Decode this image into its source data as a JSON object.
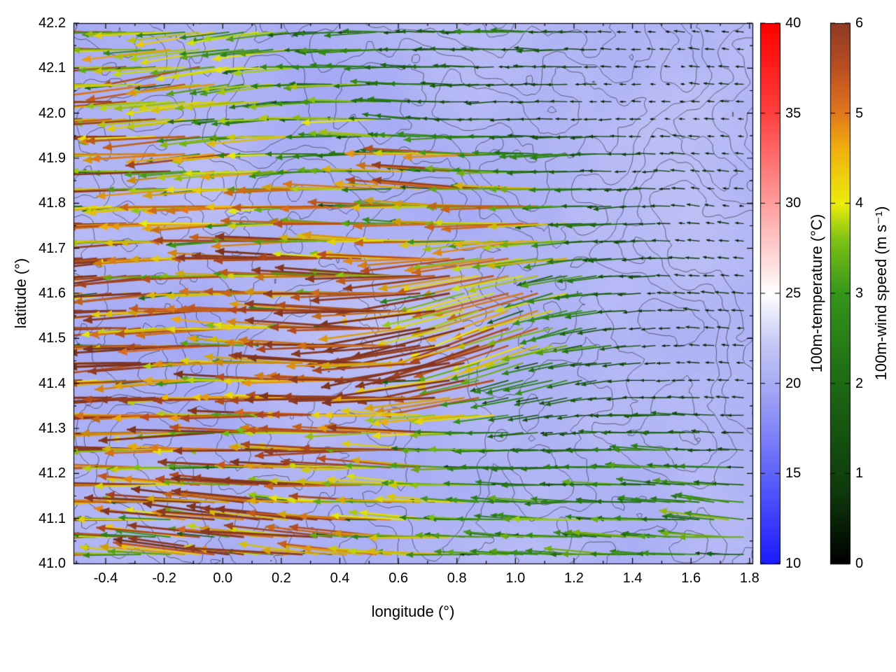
{
  "figure": {
    "background_color": "#ffffff",
    "frame_color": "#000000",
    "contour_line_color": "#2a2a33",
    "map_base_color": "#b2b6f2"
  },
  "chart_data": {
    "type": "heatmap",
    "subtype": "geographic vector-field map: 100 m wind vectors (colored/scaled by speed) over 100 m temperature shading with terrain contour lines",
    "title": "",
    "xlabel": "longitude (°)",
    "ylabel": "latitude (°)",
    "xlim": [
      -0.51,
      1.81
    ],
    "ylim": [
      41.0,
      42.2
    ],
    "x_ticks": [
      -0.4,
      -0.2,
      0.0,
      0.2,
      0.4,
      0.6,
      0.8,
      1.0,
      1.2,
      1.4,
      1.6,
      1.8
    ],
    "y_ticks": [
      41.0,
      41.1,
      41.2,
      41.3,
      41.4,
      41.5,
      41.6,
      41.7,
      41.8,
      41.9,
      42.0,
      42.1,
      42.2
    ],
    "grid": false,
    "legend_position": "right colorbars",
    "colorbars": [
      {
        "id": "temperature",
        "label": "100m-temperature (°C)",
        "min": 10,
        "max": 40,
        "ticks": [
          10,
          15,
          20,
          25,
          30,
          35,
          40
        ],
        "stops": [
          [
            10,
            "#1b1bff"
          ],
          [
            15,
            "#5f63fa"
          ],
          [
            20,
            "#a8acf4"
          ],
          [
            22,
            "#c2c5f6"
          ],
          [
            25,
            "#ffffff"
          ],
          [
            30,
            "#ff9e9e"
          ],
          [
            35,
            "#ff4040"
          ],
          [
            40,
            "#ff0000"
          ]
        ]
      },
      {
        "id": "wind_speed",
        "label": "100m-wind speed (m s⁻¹)",
        "min": 0,
        "max": 6,
        "ticks": [
          0,
          1,
          2,
          3,
          4,
          5,
          6
        ],
        "stops": [
          [
            0,
            "#000000"
          ],
          [
            0.8,
            "#0e3a0c"
          ],
          [
            2,
            "#1d6a14"
          ],
          [
            3,
            "#35961b"
          ],
          [
            3.6,
            "#7fc315"
          ],
          [
            4,
            "#eded0c"
          ],
          [
            4.6,
            "#f0b10c"
          ],
          [
            5,
            "#e2791c"
          ],
          [
            5.5,
            "#bc4f22"
          ],
          [
            6,
            "#8e3b24"
          ]
        ]
      }
    ],
    "background_temperature": {
      "units": "°C",
      "observed_map_range": [
        18,
        23
      ],
      "note": "map shading is light blue/lavender, i.e. ~18-23 °C on the 10-40 °C colorbar"
    },
    "wind_vectors": {
      "units": "m s⁻¹",
      "direction_note": "arrows point westward (toward negative longitude); fastest in the west, weakest in the northeast",
      "grid_lon": [
        -0.5,
        -0.4,
        -0.3,
        -0.2,
        -0.1,
        0.0,
        0.1,
        0.2,
        0.3,
        0.4,
        0.5,
        0.6,
        0.7,
        0.8,
        0.9,
        1.0,
        1.1,
        1.2,
        1.3,
        1.4,
        1.5,
        1.6,
        1.7,
        1.8
      ],
      "grid_lat": [
        42.2,
        42.1,
        42.0,
        41.9,
        41.8,
        41.7,
        41.6,
        41.5,
        41.4,
        41.3,
        41.2,
        41.1,
        41.0
      ],
      "speed_grid": [
        [
          3.9,
          4.1,
          3.6,
          4.0,
          3.2,
          3.6,
          3.9,
          3.0,
          2.4,
          2.0,
          2.6,
          1.6,
          1.4,
          1.1,
          2.1,
          2.4,
          1.9,
          1.4,
          0.8,
          0.5,
          0.4,
          0.5,
          0.6,
          0.5
        ],
        [
          4.3,
          4.6,
          4.0,
          3.6,
          4.0,
          3.4,
          3.0,
          3.5,
          2.6,
          2.1,
          2.6,
          2.1,
          1.6,
          2.0,
          1.5,
          1.1,
          1.4,
          1.0,
          0.6,
          0.5,
          0.4,
          0.4,
          0.5,
          0.4
        ],
        [
          5.4,
          5.0,
          4.6,
          4.4,
          4.0,
          4.0,
          3.5,
          3.0,
          2.6,
          3.0,
          3.6,
          2.5,
          2.0,
          1.5,
          1.1,
          0.8,
          0.6,
          0.5,
          0.5,
          0.4,
          0.3,
          0.4,
          0.4,
          0.3
        ],
        [
          5.6,
          5.2,
          5.0,
          4.5,
          4.1,
          4.0,
          3.9,
          3.5,
          3.0,
          2.6,
          3.0,
          2.6,
          3.4,
          4.1,
          4.4,
          3.0,
          2.1,
          2.5,
          2.0,
          1.0,
          0.8,
          0.6,
          0.5,
          0.4
        ],
        [
          5.6,
          5.5,
          5.0,
          4.6,
          4.4,
          4.0,
          3.6,
          4.0,
          4.4,
          4.0,
          4.5,
          4.1,
          4.0,
          4.4,
          4.1,
          4.4,
          4.0,
          2.5,
          1.5,
          1.2,
          0.8,
          0.6,
          0.5,
          0.4
        ],
        [
          5.8,
          5.5,
          5.0,
          4.6,
          4.1,
          4.5,
          4.0,
          4.5,
          5.0,
          4.5,
          4.0,
          4.0,
          3.6,
          4.0,
          4.4,
          4.5,
          4.0,
          3.0,
          2.4,
          1.5,
          1.0,
          0.7,
          0.6,
          0.5
        ],
        [
          5.8,
          5.6,
          5.5,
          5.0,
          4.6,
          4.4,
          4.0,
          3.6,
          4.0,
          4.5,
          4.1,
          5.0,
          5.4,
          5.0,
          4.5,
          4.4,
          4.0,
          3.0,
          2.4,
          1.4,
          0.9,
          0.7,
          0.6,
          0.5
        ],
        [
          6.0,
          5.8,
          5.5,
          5.1,
          5.0,
          4.5,
          4.1,
          4.5,
          4.1,
          5.4,
          5.5,
          5.0,
          5.5,
          5.0,
          4.5,
          4.0,
          3.5,
          3.0,
          2.4,
          1.2,
          0.8,
          0.6,
          0.5,
          0.4
        ],
        [
          5.8,
          5.6,
          5.5,
          5.4,
          5.0,
          4.1,
          4.0,
          4.5,
          4.5,
          5.5,
          5.0,
          5.4,
          5.0,
          4.5,
          4.0,
          3.4,
          2.5,
          2.0,
          1.4,
          0.8,
          0.6,
          0.5,
          0.5,
          0.5
        ],
        [
          5.6,
          5.5,
          5.0,
          5.4,
          5.0,
          4.5,
          5.0,
          4.5,
          4.6,
          5.0,
          5.4,
          5.0,
          4.5,
          3.5,
          3.0,
          2.0,
          1.5,
          1.0,
          0.9,
          1.9,
          2.0,
          1.6,
          1.1,
          0.9
        ],
        [
          5.1,
          5.5,
          5.0,
          4.6,
          5.0,
          4.5,
          4.1,
          4.5,
          5.0,
          5.4,
          5.0,
          4.5,
          4.0,
          3.4,
          2.5,
          2.0,
          2.1,
          2.4,
          2.5,
          2.5,
          2.6,
          2.5,
          2.4,
          2.4
        ],
        [
          4.5,
          4.1,
          4.4,
          3.6,
          4.0,
          4.5,
          5.0,
          5.4,
          5.5,
          5.0,
          4.5,
          4.0,
          3.5,
          3.0,
          2.6,
          2.9,
          2.5,
          2.9,
          2.5,
          2.9,
          2.5,
          2.5,
          2.8,
          2.5
        ],
        [
          4.1,
          4.0,
          3.6,
          4.1,
          4.4,
          4.5,
          5.0,
          4.6,
          5.0,
          4.5,
          4.1,
          3.6,
          4.0,
          3.0,
          2.9,
          2.5,
          2.9,
          2.5,
          2.5,
          2.9,
          2.5,
          2.4,
          2.5,
          2.4
        ]
      ]
    }
  }
}
